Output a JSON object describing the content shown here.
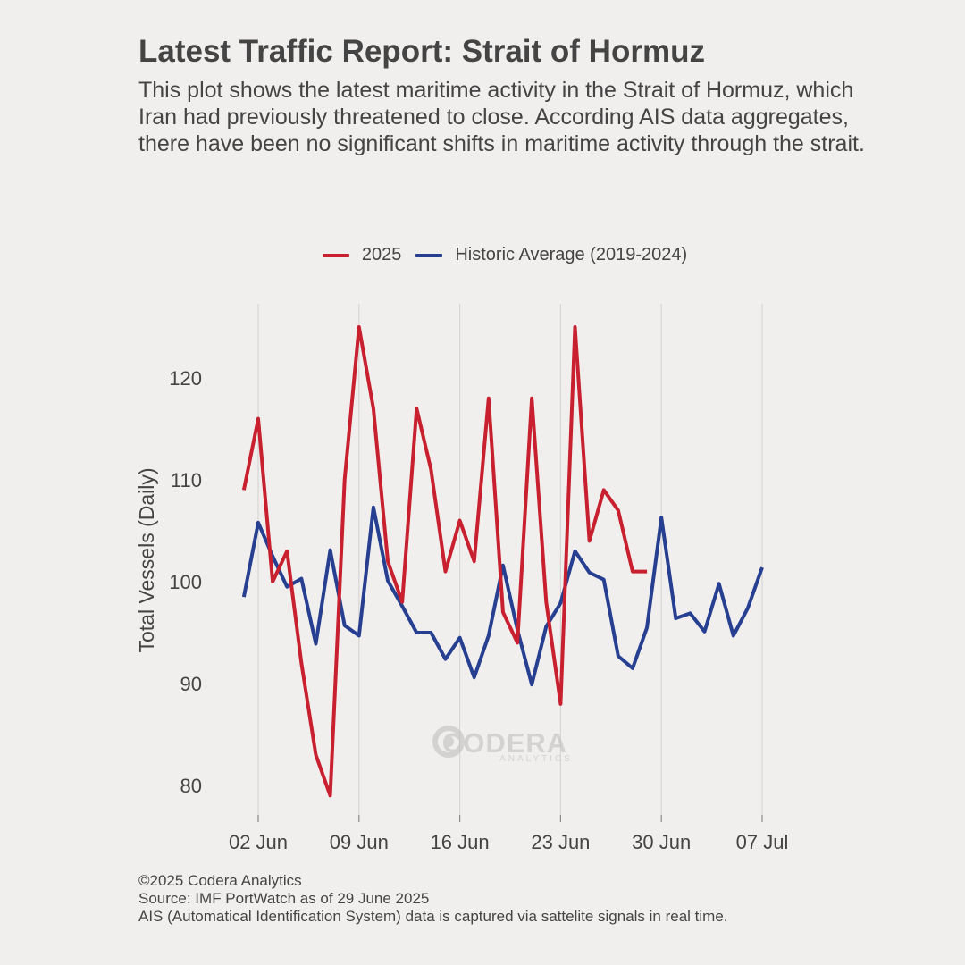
{
  "header": {
    "title": "Latest Traffic Report: Strait of Hormuz",
    "subtitle": "This plot shows the latest maritime activity in the Strait of Hormuz, which Iran had previously threatened to close. According AIS data aggregates, there have been no significant shifts in maritime activity through the strait."
  },
  "watermark": {
    "name": "CODERA",
    "tagline": "ANALYTICS"
  },
  "footer": {
    "copyright": "©2025 Codera Analytics",
    "source": "Source: IMF PortWatch as of 29 June 2025",
    "note": "AIS (Automatical Identification System) data is captured via sattelite signals in real time."
  },
  "colors": {
    "background": "#f1efee",
    "series_2025": "#c8202f",
    "series_historic": "#263f91",
    "grid": "#d8d6d5",
    "text": "#444444"
  },
  "chart_data": {
    "type": "line",
    "title": "Latest Traffic Report: Strait of Hormuz",
    "xlabel": "",
    "ylabel": "Total Vessels (Daily)",
    "ylim": [
      76,
      126
    ],
    "xlim": [
      "2025-05-30",
      "2025-07-08"
    ],
    "y_ticks": [
      80,
      90,
      100,
      110,
      120
    ],
    "x_ticks": [
      {
        "date": "2025-06-02",
        "label": "02 Jun"
      },
      {
        "date": "2025-06-09",
        "label": "09 Jun"
      },
      {
        "date": "2025-06-16",
        "label": "16 Jun"
      },
      {
        "date": "2025-06-23",
        "label": "23 Jun"
      },
      {
        "date": "2025-06-30",
        "label": "30 Jun"
      },
      {
        "date": "2025-07-07",
        "label": "07 Jul"
      }
    ],
    "grid": "vertical",
    "legend_position": "top",
    "series": [
      {
        "name": "2025",
        "color": "#c8202f",
        "points": [
          [
            "2025-06-01",
            109
          ],
          [
            "2025-06-02",
            116
          ],
          [
            "2025-06-03",
            100
          ],
          [
            "2025-06-04",
            103
          ],
          [
            "2025-06-05",
            92
          ],
          [
            "2025-06-06",
            83
          ],
          [
            "2025-06-07",
            79
          ],
          [
            "2025-06-08",
            110
          ],
          [
            "2025-06-09",
            125
          ],
          [
            "2025-06-10",
            117
          ],
          [
            "2025-06-11",
            102
          ],
          [
            "2025-06-12",
            98
          ],
          [
            "2025-06-13",
            117
          ],
          [
            "2025-06-14",
            111
          ],
          [
            "2025-06-15",
            101
          ],
          [
            "2025-06-16",
            106
          ],
          [
            "2025-06-17",
            102
          ],
          [
            "2025-06-18",
            118
          ],
          [
            "2025-06-19",
            97
          ],
          [
            "2025-06-20",
            94
          ],
          [
            "2025-06-21",
            118
          ],
          [
            "2025-06-22",
            98
          ],
          [
            "2025-06-23",
            88
          ],
          [
            "2025-06-24",
            125
          ],
          [
            "2025-06-25",
            104
          ],
          [
            "2025-06-26",
            109
          ],
          [
            "2025-06-27",
            107
          ],
          [
            "2025-06-28",
            101
          ],
          [
            "2025-06-29",
            101
          ]
        ]
      },
      {
        "name": "Historic Average (2019-2024)",
        "color": "#263f91",
        "points": [
          [
            "2025-06-01",
            98.5
          ],
          [
            "2025-06-02",
            105.8
          ],
          [
            "2025-06-03",
            102.5
          ],
          [
            "2025-06-04",
            99.5
          ],
          [
            "2025-06-05",
            100.3
          ],
          [
            "2025-06-06",
            93.9
          ],
          [
            "2025-06-07",
            103.1
          ],
          [
            "2025-06-08",
            95.7
          ],
          [
            "2025-06-09",
            94.7
          ],
          [
            "2025-06-10",
            107.3
          ],
          [
            "2025-06-11",
            100.1
          ],
          [
            "2025-06-12",
            97.6
          ],
          [
            "2025-06-13",
            95.0
          ],
          [
            "2025-06-14",
            95.0
          ],
          [
            "2025-06-15",
            92.4
          ],
          [
            "2025-06-16",
            94.5
          ],
          [
            "2025-06-17",
            90.6
          ],
          [
            "2025-06-18",
            94.7
          ],
          [
            "2025-06-19",
            101.6
          ],
          [
            "2025-06-20",
            95.3
          ],
          [
            "2025-06-21",
            89.9
          ],
          [
            "2025-06-22",
            95.6
          ],
          [
            "2025-06-23",
            97.9
          ],
          [
            "2025-06-24",
            103.0
          ],
          [
            "2025-06-25",
            100.9
          ],
          [
            "2025-06-26",
            100.2
          ],
          [
            "2025-06-27",
            92.7
          ],
          [
            "2025-06-28",
            91.5
          ],
          [
            "2025-06-29",
            95.5
          ],
          [
            "2025-06-30",
            106.3
          ],
          [
            "2025-07-01",
            96.4
          ],
          [
            "2025-07-02",
            96.9
          ],
          [
            "2025-07-03",
            95.1
          ],
          [
            "2025-07-04",
            99.8
          ],
          [
            "2025-07-05",
            94.7
          ],
          [
            "2025-07-06",
            97.4
          ],
          [
            "2025-07-07",
            101.4
          ]
        ]
      }
    ]
  }
}
